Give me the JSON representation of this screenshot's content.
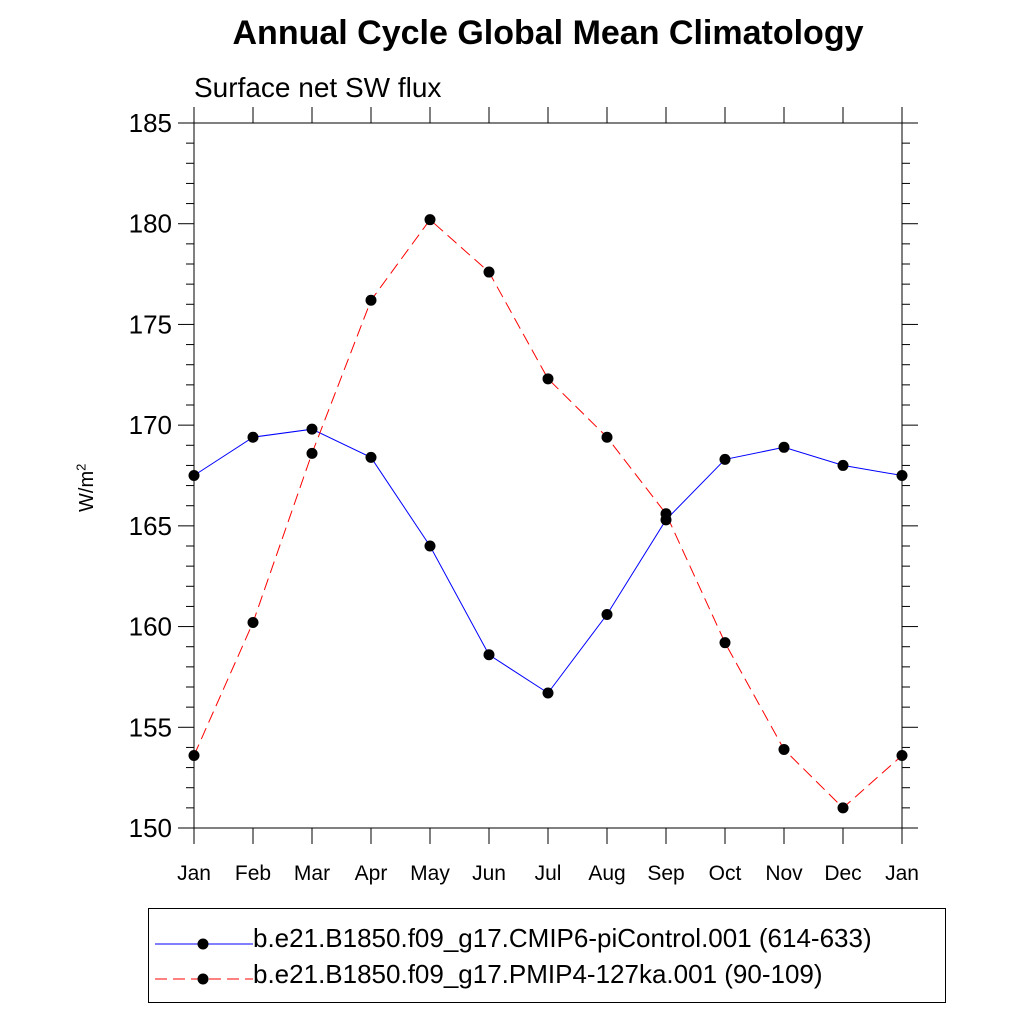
{
  "chart_data": {
    "type": "line",
    "title": "Annual Cycle Global Mean Climatology",
    "subtitle": "Surface net SW flux",
    "ylabel": "W/m",
    "ylabel_sup": "2",
    "xlabel": "",
    "categories": [
      "Jan",
      "Feb",
      "Mar",
      "Apr",
      "May",
      "Jun",
      "Jul",
      "Aug",
      "Sep",
      "Oct",
      "Nov",
      "Dec",
      "Jan"
    ],
    "ylim": [
      150,
      185
    ],
    "yticks": [
      150,
      155,
      160,
      165,
      170,
      175,
      180,
      185
    ],
    "legend_position": "bottom",
    "grid": false,
    "series": [
      {
        "name": "b.e21.B1850.f09_g17.CMIP6-piControl.001 (614-633)",
        "color": "#0000ff",
        "dash": "solid",
        "values": [
          167.5,
          169.4,
          169.8,
          168.4,
          164.0,
          158.6,
          156.7,
          160.6,
          165.3,
          168.3,
          168.9,
          168.0,
          167.5
        ]
      },
      {
        "name": "b.e21.B1850.f09_g17.PMIP4-127ka.001 (90-109)",
        "color": "#ff0000",
        "dash": "dashed",
        "values": [
          153.6,
          160.2,
          168.6,
          176.2,
          180.2,
          177.6,
          172.3,
          169.4,
          165.6,
          159.2,
          153.9,
          151.0,
          153.6
        ]
      }
    ]
  }
}
